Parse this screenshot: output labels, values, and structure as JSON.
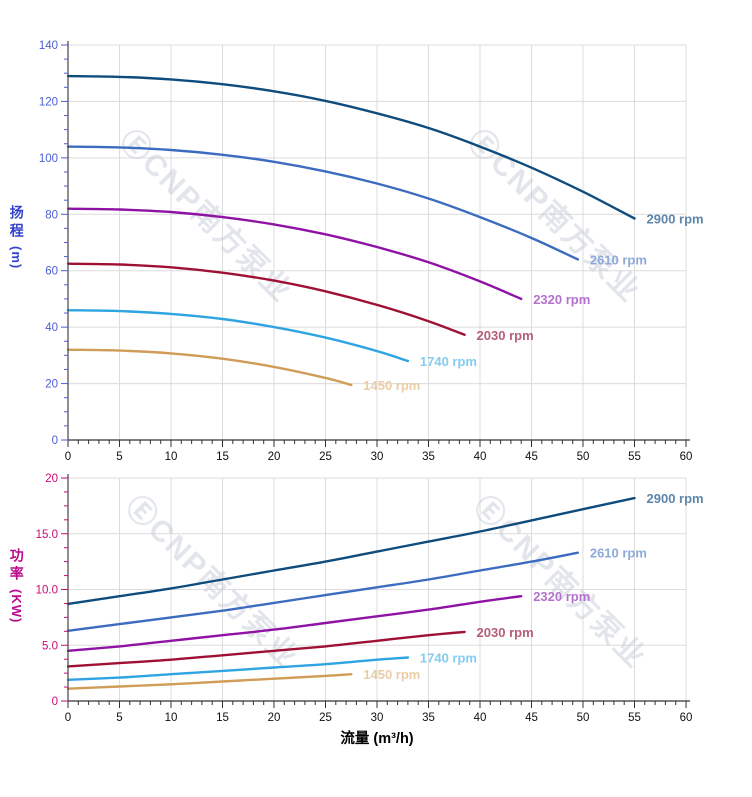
{
  "page": {
    "watermark_text": "ⒺCNP南方泵业"
  },
  "axes": {
    "flow_title": "流量 (m³/h)",
    "head_title_cjk": "扬程",
    "head_title_unit": "(m)",
    "power_title_cjk": "功率",
    "power_title_unit": "(KW)"
  },
  "chart_data": [
    {
      "id": "head",
      "type": "line",
      "title": "Pump head curves (扬程 vs 流量)",
      "xlabel": "流量 (m³/h)",
      "ylabel": "扬程 (m)",
      "xlim": [
        0,
        60
      ],
      "ylim": [
        0,
        140
      ],
      "grid": true,
      "x_ticks": [
        0,
        5,
        10,
        15,
        20,
        25,
        30,
        35,
        40,
        45,
        50,
        55,
        60
      ],
      "x_minor_step": 1,
      "y_tick_values": [
        0,
        20,
        40,
        60,
        80,
        100,
        120,
        140
      ],
      "y_tick_labels": [
        "0",
        "20",
        "40",
        "60",
        "80",
        "100",
        "120",
        "140"
      ],
      "y_minor_step": 5,
      "grid_x_step": 5,
      "axis_color": "#4a5ed6",
      "series": [
        {
          "name": "2900 rpm",
          "color": "#0f4c7e",
          "label_color": "#5e86aa",
          "points": [
            [
              0,
              129
            ],
            [
              5,
              128.7
            ],
            [
              10,
              127.8
            ],
            [
              15,
              126.1
            ],
            [
              20,
              123.6
            ],
            [
              25,
              120.2
            ],
            [
              30,
              115.8
            ],
            [
              35,
              110.6
            ],
            [
              40,
              104
            ],
            [
              45,
              96.5
            ],
            [
              50,
              88
            ],
            [
              55,
              78.5
            ]
          ]
        },
        {
          "name": "2610 rpm",
          "color": "#3c6cc0",
          "label_color": "#8ea9d9",
          "points": [
            [
              0,
              104
            ],
            [
              5,
              103.7
            ],
            [
              10,
              102.8
            ],
            [
              15,
              101.1
            ],
            [
              20,
              98.6
            ],
            [
              25,
              95.2
            ],
            [
              30,
              90.9
            ],
            [
              35,
              85.6
            ],
            [
              40,
              79
            ],
            [
              45,
              71.6
            ],
            [
              49.5,
              64
            ]
          ]
        },
        {
          "name": "2320 rpm",
          "color": "#8f12a5",
          "label_color": "#b571ce",
          "points": [
            [
              0,
              82
            ],
            [
              5,
              81.7
            ],
            [
              10,
              80.8
            ],
            [
              15,
              79
            ],
            [
              20,
              76.4
            ],
            [
              25,
              72.9
            ],
            [
              30,
              68.4
            ],
            [
              35,
              63
            ],
            [
              40,
              56.2
            ],
            [
              44,
              50
            ]
          ]
        },
        {
          "name": "2030 rpm",
          "color": "#9e1134",
          "label_color": "#b55f76",
          "points": [
            [
              0,
              62.5
            ],
            [
              5,
              62.2
            ],
            [
              10,
              61.2
            ],
            [
              15,
              59.3
            ],
            [
              20,
              56.5
            ],
            [
              25,
              52.7
            ],
            [
              30,
              47.9
            ],
            [
              35,
              42.1
            ],
            [
              38.5,
              37.3
            ]
          ]
        },
        {
          "name": "1740 rpm",
          "color": "#2ea4e2",
          "label_color": "#85ccf0",
          "points": [
            [
              0,
              46
            ],
            [
              5,
              45.7
            ],
            [
              10,
              44.7
            ],
            [
              15,
              42.9
            ],
            [
              20,
              40
            ],
            [
              25,
              36.3
            ],
            [
              30,
              31.5
            ],
            [
              33,
              28
            ]
          ]
        },
        {
          "name": "1450 rpm",
          "color": "#d09c58",
          "label_color": "#e9cda6",
          "points": [
            [
              0,
              32
            ],
            [
              5,
              31.7
            ],
            [
              10,
              30.7
            ],
            [
              15,
              28.8
            ],
            [
              20,
              25.9
            ],
            [
              25,
              22
            ],
            [
              27.5,
              19.5
            ]
          ]
        }
      ]
    },
    {
      "id": "power",
      "type": "line",
      "title": "Pump power curves (功率 vs 流量)",
      "xlabel": "流量 (m³/h)",
      "ylabel": "功率 (KW)",
      "xlim": [
        0,
        60
      ],
      "ylim": [
        0,
        20
      ],
      "grid": true,
      "x_ticks": [
        0,
        5,
        10,
        15,
        20,
        25,
        30,
        35,
        40,
        45,
        50,
        55,
        60
      ],
      "x_minor_step": 1,
      "y_tick_values": [
        0,
        5,
        10,
        15,
        20
      ],
      "y_tick_labels": [
        "0",
        "5.0",
        "10.0",
        "15.0",
        "20"
      ],
      "y_minor_step": 1.25,
      "grid_x_step": 5,
      "axis_color": "#cb0a78",
      "series": [
        {
          "name": "2900 rpm",
          "color": "#0f4c7e",
          "label_color": "#5e86aa",
          "points": [
            [
              0,
              8.7
            ],
            [
              5,
              9.4
            ],
            [
              10,
              10.1
            ],
            [
              15,
              10.9
            ],
            [
              20,
              11.7
            ],
            [
              25,
              12.5
            ],
            [
              30,
              13.4
            ],
            [
              35,
              14.3
            ],
            [
              40,
              15.2
            ],
            [
              45,
              16.2
            ],
            [
              50,
              17.2
            ],
            [
              55,
              18.2
            ]
          ]
        },
        {
          "name": "2610 rpm",
          "color": "#3c6cc0",
          "label_color": "#8ea9d9",
          "points": [
            [
              0,
              6.3
            ],
            [
              5,
              6.9
            ],
            [
              10,
              7.5
            ],
            [
              15,
              8.1
            ],
            [
              20,
              8.8
            ],
            [
              25,
              9.5
            ],
            [
              30,
              10.2
            ],
            [
              35,
              10.9
            ],
            [
              40,
              11.7
            ],
            [
              45,
              12.5
            ],
            [
              49.5,
              13.3
            ]
          ]
        },
        {
          "name": "2320 rpm",
          "color": "#8f12a5",
          "label_color": "#b571ce",
          "points": [
            [
              0,
              4.5
            ],
            [
              5,
              4.9
            ],
            [
              10,
              5.4
            ],
            [
              15,
              5.9
            ],
            [
              20,
              6.4
            ],
            [
              25,
              7
            ],
            [
              30,
              7.6
            ],
            [
              35,
              8.2
            ],
            [
              40,
              8.9
            ],
            [
              44,
              9.4
            ]
          ]
        },
        {
          "name": "2030 rpm",
          "color": "#9e1134",
          "label_color": "#b55f76",
          "points": [
            [
              0,
              3.1
            ],
            [
              5,
              3.4
            ],
            [
              10,
              3.7
            ],
            [
              15,
              4.1
            ],
            [
              20,
              4.5
            ],
            [
              25,
              4.9
            ],
            [
              30,
              5.4
            ],
            [
              35,
              5.9
            ],
            [
              38.5,
              6.2
            ]
          ]
        },
        {
          "name": "1740 rpm",
          "color": "#2ea4e2",
          "label_color": "#85ccf0",
          "points": [
            [
              0,
              1.9
            ],
            [
              5,
              2.1
            ],
            [
              10,
              2.4
            ],
            [
              15,
              2.7
            ],
            [
              20,
              3
            ],
            [
              25,
              3.3
            ],
            [
              30,
              3.7
            ],
            [
              33,
              3.9
            ]
          ]
        },
        {
          "name": "1450 rpm",
          "color": "#d09c58",
          "label_color": "#e9cda6",
          "points": [
            [
              0,
              1.1
            ],
            [
              5,
              1.3
            ],
            [
              10,
              1.5
            ],
            [
              15,
              1.75
            ],
            [
              20,
              2
            ],
            [
              25,
              2.25
            ],
            [
              27.5,
              2.4
            ]
          ]
        }
      ]
    }
  ]
}
